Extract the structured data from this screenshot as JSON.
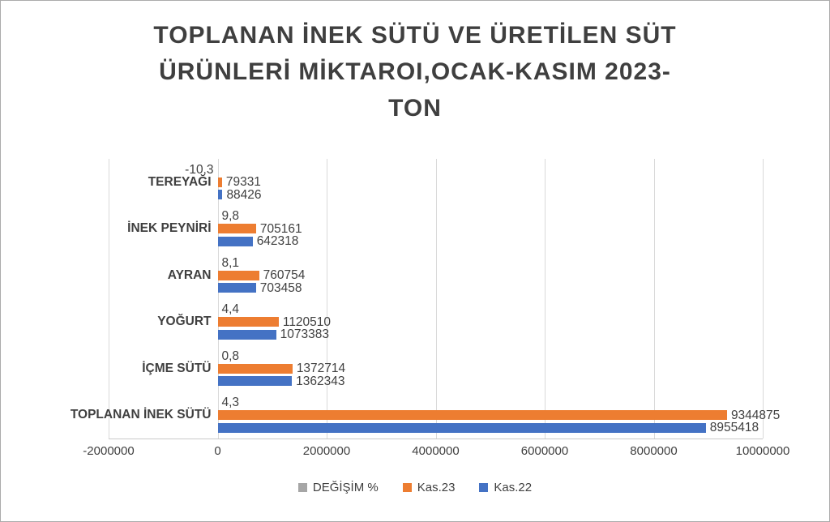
{
  "window": {
    "background": "#ffffff",
    "border_color": "#ababab"
  },
  "colors": {
    "grid": "#d9d9d9",
    "axis_text": "#404040",
    "title_text": "#3f3f3f"
  },
  "chart_data": {
    "type": "bar",
    "orientation": "horizontal",
    "title": "TOPLANAN İNEK SÜTÜ VE ÜRETİLEN SÜT ÜRÜNLERİ MİKTAROI,OCAK-KASIM 2023-TON",
    "title_lines": [
      "TOPLANAN İNEK SÜTÜ VE ÜRETİLEN SÜT",
      "ÜRÜNLERİ MİKTAROI,OCAK-KASIM 2023-",
      "TON"
    ],
    "categories": [
      "TEREYAĞI",
      "İNEK PEYNİRİ",
      "AYRAN",
      "YOĞURT",
      "İÇME SÜTÜ",
      "TOPLANAN İNEK SÜTÜ"
    ],
    "series": [
      {
        "key": "degisim",
        "name": "DEĞİŞİM %",
        "color": "#a6a6a6",
        "values": [
          -10.3,
          9.8,
          8.1,
          4.4,
          0.8,
          4.3
        ],
        "labels": [
          "-10,3",
          "9,8",
          "8,1",
          "4,4",
          "0,8",
          "4,3"
        ]
      },
      {
        "key": "kas23",
        "name": "Kas.23",
        "color": "#ed7d31",
        "values": [
          79331,
          705161,
          760754,
          1120510,
          1372714,
          9344875
        ],
        "labels": [
          "79331",
          "705161",
          "760754",
          "1120510",
          "1372714",
          "9344875"
        ]
      },
      {
        "key": "kas22",
        "name": "Kas.22",
        "color": "#4472c4",
        "values": [
          88426,
          642318,
          703458,
          1073383,
          1362343,
          8955418
        ],
        "labels": [
          "88426",
          "642318",
          "703458",
          "1073383",
          "1362343",
          "8955418"
        ]
      }
    ],
    "xlim": [
      -2000000,
      10000000
    ],
    "x_ticks": [
      -2000000,
      0,
      2000000,
      4000000,
      6000000,
      8000000,
      10000000
    ],
    "x_tick_labels": [
      "-2000000",
      "0",
      "2000000",
      "4000000",
      "6000000",
      "8000000",
      "10000000"
    ],
    "grid": true,
    "legend_position": "bottom"
  }
}
